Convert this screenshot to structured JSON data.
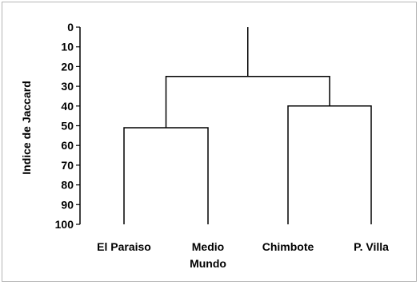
{
  "chart_data": {
    "type": "dendrogram",
    "title": "",
    "ylabel": "Indice de Jaccard",
    "xlabel": "",
    "yticks": [
      "0",
      "10",
      "20",
      "30",
      "40",
      "50",
      "60",
      "70",
      "80",
      "90",
      "100"
    ],
    "ylim": [
      0,
      100
    ],
    "y_inverted": true,
    "grid": false,
    "leaves": [
      {
        "lines": [
          "El Paraiso"
        ]
      },
      {
        "lines": [
          "Medio",
          "Mundo"
        ]
      },
      {
        "lines": [
          "Chimbote"
        ]
      },
      {
        "lines": [
          "P. Villa"
        ]
      }
    ],
    "merges": [
      {
        "left": [
          0
        ],
        "right": [
          1
        ],
        "height": 51
      },
      {
        "left": [
          2
        ],
        "right": [
          3
        ],
        "height": 40
      },
      {
        "left": [
          0,
          1
        ],
        "right": [
          2,
          3
        ],
        "height": 25
      }
    ],
    "root_height": 0,
    "colors": {
      "line": "#000000",
      "text": "#000000",
      "axis": "#000000"
    }
  }
}
